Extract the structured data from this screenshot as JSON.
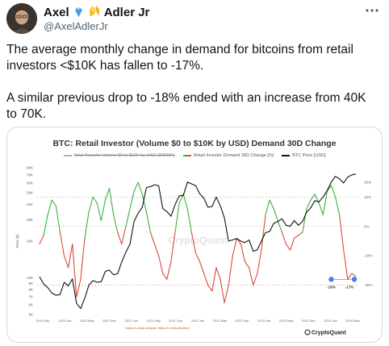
{
  "author": {
    "display_name": "Axel",
    "badge_emoji": "💎🙌",
    "name_suffix": "Adler Jr",
    "handle": "@AxelAdlerJr",
    "avatar_icon": "avatar"
  },
  "tweet": {
    "paragraph_1": "The average monthly change in demand for bitcoins from retail investors <$10K has fallen to -17%.",
    "paragraph_2": "A similar previous drop to -18% ended with an increase from 40K to 70K."
  },
  "chart_data": {
    "type": "line",
    "title": "BTC: Retail Investor (Volume $0 to $10K by USD) Demand 30D Change",
    "legend": [
      "Total Transfer Volume $0 to $10K by USD (30DMA)",
      "Retail Investor Demand 30D Change [%]",
      "BTC Price [USD]"
    ],
    "left_axis_label": "Price ($)",
    "left_ticks": [
      "80K",
      "70K",
      "60K",
      "50K",
      "40K",
      "30K",
      "20K",
      "10K",
      "9K",
      "8K",
      "7K",
      "6K",
      "5K"
    ],
    "right_ticks": [
      "15%",
      "10%",
      "0%",
      "-10%",
      "-20%"
    ],
    "x_ticks": [
      "2019 Sep",
      "2020 Jan",
      "2020 May",
      "2020 Sep",
      "2021 Jan",
      "2021 May",
      "2021 Sep",
      "2022 Jan",
      "2022 May",
      "2022 Sep",
      "2023 Jan",
      "2023 May",
      "2023 Sep",
      "2024 Jan",
      "2024 May"
    ],
    "annotations": [
      {
        "label": "-18%",
        "series": "Retail Investor Demand 30D Change [%]",
        "value": -18
      },
      {
        "label": "-17%",
        "series": "Retail Investor Demand 30D Change [%]",
        "value": -17
      }
    ],
    "series": [
      {
        "name": "BTC Price [USD]",
        "color": "#111111",
        "y": [
          10200,
          8900,
          8300,
          7500,
          7200,
          7300,
          9200,
          8600,
          9800,
          6200,
          5600,
          6800,
          8700,
          9500,
          9200,
          9300,
          11300,
          11600,
          10600,
          10800,
          13500,
          16200,
          18900,
          28900,
          34000,
          38000,
          55000,
          56000,
          58000,
          57000,
          37000,
          35000,
          32000,
          40000,
          47000,
          47500,
          61000,
          59000,
          57000,
          49000,
          45000,
          38000,
          38500,
          46000,
          39000,
          31000,
          20000,
          20500,
          21000,
          20000,
          19500,
          20500,
          16500,
          17000,
          20000,
          23500,
          24000,
          28000,
          29000,
          30500,
          27000,
          26500,
          29500,
          27000,
          29000,
          34500,
          37500,
          43000,
          42000,
          46000,
          52000,
          61000,
          68000,
          65000,
          60000,
          67000,
          70000,
          71000
        ]
      },
      {
        "name": "Retail Investor Demand 30D Change [%]",
        "y": [
          -6,
          -3,
          4,
          9,
          7,
          -2,
          -10,
          -14,
          -6,
          -24,
          -18,
          -4,
          5,
          10,
          8,
          2,
          9,
          13,
          4,
          -2,
          -6,
          0,
          6,
          12,
          15,
          11,
          5,
          -2,
          -6,
          -10,
          -16,
          -18,
          -12,
          -2,
          8,
          11,
          6,
          -2,
          -9,
          -12,
          -16,
          -20,
          -22,
          -14,
          -18,
          -26,
          -20,
          -10,
          -4,
          -6,
          -12,
          -14,
          -20,
          -16,
          -8,
          4,
          9,
          6,
          2,
          -2,
          -6,
          -8,
          -4,
          -3,
          -2,
          6,
          9,
          11,
          8,
          4,
          12,
          14,
          10,
          4,
          -8,
          -18,
          -16,
          -17
        ]
      }
    ]
  },
  "source_note": "Daily on-chain analysis: https://t.me/AxelAdlerJr",
  "watermark": "CryptoQuant",
  "brand": "CryptoQuant",
  "colors": {
    "positive": "#3fae3f",
    "negative": "#d84a3a",
    "price": "#111111",
    "marker": "#4a7de8"
  }
}
